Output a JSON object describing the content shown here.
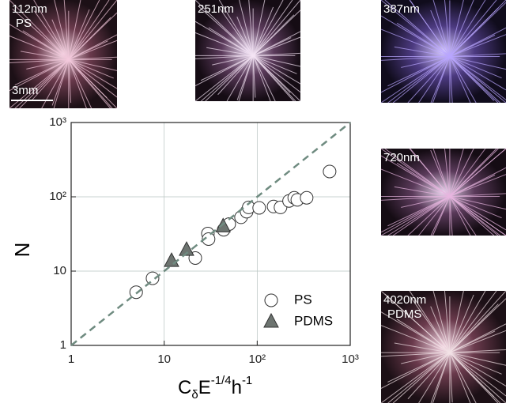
{
  "chart_data": {
    "type": "scatter",
    "x_label": [
      "C",
      "δ",
      "E",
      "-1/4",
      "h",
      "-1"
    ],
    "y_label": "N",
    "log_x": true,
    "log_y": true,
    "grid": true,
    "legend": "lower right",
    "xlim": [
      1,
      1000
    ],
    "ylim": [
      1,
      1000
    ],
    "xticks": [
      1,
      10,
      {
        "value": 100,
        "label": "10²"
      },
      {
        "value": 1000,
        "label": "10³"
      }
    ],
    "yticks": [
      1,
      10,
      {
        "value": 100,
        "label": "10²"
      },
      {
        "value": 1000,
        "label": "10³"
      }
    ],
    "series": [
      {
        "name": "PS",
        "marker": "circle",
        "color": "#ffffff",
        "x": [
          5,
          7.5,
          21.6,
          29.5,
          30,
          43.6,
          50,
          67,
          77,
          81,
          105,
          150,
          178,
          220,
          250,
          270,
          340,
          600
        ],
        "values": [
          5.2,
          8,
          15,
          32,
          27,
          36,
          43,
          53,
          63,
          72,
          71,
          74,
          72,
          88,
          97,
          91,
          97,
          219
        ]
      },
      {
        "name": "PDMS",
        "marker": "triangle",
        "color": "#6d7470",
        "x": [
          12,
          17.4,
          43
        ],
        "values": [
          13.7,
          19.3,
          40
        ]
      },
      {
        "type": "line",
        "style": "dashed",
        "color": "#6f8b80",
        "x": [
          1,
          1000
        ],
        "values": [
          1,
          1000
        ]
      }
    ],
    "panels": [
      {
        "label": "112nm",
        "sub": "PS",
        "scale_bar": "3mm"
      },
      {
        "label": "251nm"
      },
      {
        "label": "387nm"
      },
      {
        "label": "720nm"
      },
      {
        "label": "4020nm",
        "sub": "PDMS"
      }
    ]
  }
}
